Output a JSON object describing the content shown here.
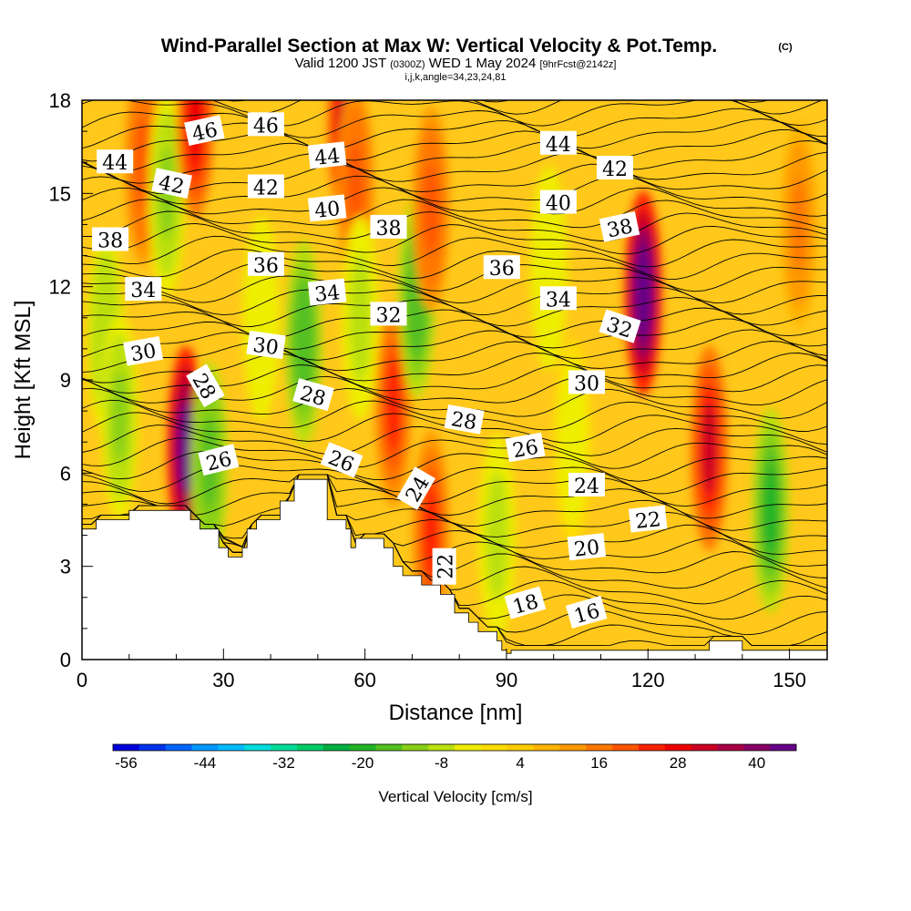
{
  "title": {
    "line1": "Wind-Parallel Section at Max W: Vertical Velocity & Pot.Temp.",
    "copyright": "(C)",
    "valid_prefix": "Valid 1200 JST",
    "valid_utc": "(0300Z)",
    "valid_date": "WED 1 May 2024",
    "forecast": "[9hrFcst@2142z]",
    "line3": "i,j,k,angle=34,23,24,81"
  },
  "chart_data": {
    "type": "heatmap",
    "xlabel": "Distance [nm]",
    "ylabel": "Height [Kft MSL]",
    "xlim": [
      0,
      158
    ],
    "ylim": [
      0,
      18
    ],
    "x_ticks": [
      0,
      30,
      60,
      90,
      120,
      150
    ],
    "y_ticks": [
      0,
      3,
      6,
      9,
      12,
      15,
      18
    ],
    "grid": false,
    "colorbar": {
      "label": "Vertical Velocity [cm/s]",
      "placement": "bottom",
      "tick_labels": [
        "-56",
        "-44",
        "-32",
        "-20",
        "-8",
        "4",
        "16",
        "28",
        "40"
      ],
      "colors": [
        "#0000dd",
        "#0033ee",
        "#0066ff",
        "#0099ff",
        "#00bbff",
        "#00dddd",
        "#00dd99",
        "#00cc66",
        "#00b040",
        "#22b428",
        "#55c020",
        "#88d018",
        "#bbe010",
        "#eeee00",
        "#ffdd00",
        "#ffcc00",
        "#ffb400",
        "#ff9900",
        "#ff7700",
        "#ff5500",
        "#ff2200",
        "#ee0000",
        "#cc0022",
        "#aa0044",
        "#880066",
        "#660088"
      ]
    },
    "vertical_velocity_features": [
      {
        "x": 5,
        "z": 10.5,
        "w": -12
      },
      {
        "x": 8,
        "z": 7.8,
        "w": -14
      },
      {
        "x": 13,
        "z": 16.0,
        "w": 18
      },
      {
        "x": 18,
        "z": 15.0,
        "w": -14
      },
      {
        "x": 22,
        "z": 6.8,
        "w": 42
      },
      {
        "x": 24,
        "z": 17.5,
        "w": 24
      },
      {
        "x": 27,
        "z": 6.3,
        "w": -18
      },
      {
        "x": 38,
        "z": 11.0,
        "w": -8
      },
      {
        "x": 47,
        "z": 10.2,
        "w": -20
      },
      {
        "x": 56,
        "z": 17.2,
        "w": 30
      },
      {
        "x": 58,
        "z": 15.2,
        "w": 18
      },
      {
        "x": 59,
        "z": 11.0,
        "w": -10
      },
      {
        "x": 66,
        "z": 8.2,
        "w": 22
      },
      {
        "x": 71,
        "z": 11.7,
        "w": -20
      },
      {
        "x": 74,
        "z": 14.5,
        "w": 18
      },
      {
        "x": 74,
        "z": 4.1,
        "w": 22
      },
      {
        "x": 88,
        "z": 4.0,
        "w": -10
      },
      {
        "x": 99,
        "z": 12.6,
        "w": -8
      },
      {
        "x": 104,
        "z": 7.0,
        "w": -6
      },
      {
        "x": 119,
        "z": 11.8,
        "w": 44
      },
      {
        "x": 133,
        "z": 6.8,
        "w": 28
      },
      {
        "x": 146,
        "z": 4.8,
        "w": -22
      },
      {
        "x": 152,
        "z": 14.0,
        "w": 12
      }
    ],
    "potential_temperature_labels": [
      {
        "value": "46",
        "x": 26,
        "z": 17.0,
        "angle": -12
      },
      {
        "value": "46",
        "x": 39,
        "z": 17.2,
        "angle": 0
      },
      {
        "value": "44",
        "x": 7,
        "z": 16.0,
        "angle": 0
      },
      {
        "value": "44",
        "x": 52,
        "z": 16.2,
        "angle": -6
      },
      {
        "value": "44",
        "x": 101,
        "z": 16.6,
        "angle": 0
      },
      {
        "value": "42",
        "x": 19,
        "z": 15.3,
        "angle": 12
      },
      {
        "value": "42",
        "x": 39,
        "z": 15.2,
        "angle": 0
      },
      {
        "value": "42",
        "x": 113,
        "z": 15.8,
        "angle": 0
      },
      {
        "value": "40",
        "x": 52,
        "z": 14.5,
        "angle": -6
      },
      {
        "value": "40",
        "x": 101,
        "z": 14.7,
        "angle": 0
      },
      {
        "value": "38",
        "x": 6,
        "z": 13.5,
        "angle": 0
      },
      {
        "value": "38",
        "x": 65,
        "z": 13.9,
        "angle": 0
      },
      {
        "value": "38",
        "x": 114,
        "z": 13.9,
        "angle": -12
      },
      {
        "value": "36",
        "x": 39,
        "z": 12.7,
        "angle": 0
      },
      {
        "value": "36",
        "x": 89,
        "z": 12.6,
        "angle": 0
      },
      {
        "value": "34",
        "x": 13,
        "z": 11.9,
        "angle": 0
      },
      {
        "value": "34",
        "x": 52,
        "z": 11.8,
        "angle": -6
      },
      {
        "value": "34",
        "x": 101,
        "z": 11.6,
        "angle": 0
      },
      {
        "value": "32",
        "x": 65,
        "z": 11.1,
        "angle": 0
      },
      {
        "value": "32",
        "x": 114,
        "z": 10.7,
        "angle": 18
      },
      {
        "value": "30",
        "x": 13,
        "z": 9.9,
        "angle": -10
      },
      {
        "value": "30",
        "x": 39,
        "z": 10.1,
        "angle": 8
      },
      {
        "value": "30",
        "x": 107,
        "z": 8.9,
        "angle": 0
      },
      {
        "value": "28",
        "x": 26,
        "z": 8.8,
        "angle": 60
      },
      {
        "value": "28",
        "x": 49,
        "z": 8.5,
        "angle": 16
      },
      {
        "value": "28",
        "x": 81,
        "z": 7.7,
        "angle": 10
      },
      {
        "value": "26",
        "x": 29,
        "z": 6.4,
        "angle": -14
      },
      {
        "value": "26",
        "x": 55,
        "z": 6.4,
        "angle": 22
      },
      {
        "value": "26",
        "x": 94,
        "z": 6.8,
        "angle": -10
      },
      {
        "value": "24",
        "x": 71,
        "z": 5.5,
        "angle": -60
      },
      {
        "value": "24",
        "x": 107,
        "z": 5.6,
        "angle": 0
      },
      {
        "value": "22",
        "x": 77,
        "z": 3.0,
        "angle": -90
      },
      {
        "value": "22",
        "x": 120,
        "z": 4.5,
        "angle": -6
      },
      {
        "value": "20",
        "x": 107,
        "z": 3.6,
        "angle": -6
      },
      {
        "value": "18",
        "x": 94,
        "z": 1.8,
        "angle": -16
      },
      {
        "value": "16",
        "x": 107,
        "z": 1.5,
        "angle": -16
      }
    ],
    "terrain_profile": [
      [
        0,
        4.2
      ],
      [
        3,
        4.2
      ],
      [
        3,
        4.5
      ],
      [
        10,
        4.5
      ],
      [
        10,
        4.8
      ],
      [
        23,
        4.8
      ],
      [
        23,
        4.5
      ],
      [
        25,
        4.5
      ],
      [
        25,
        4.2
      ],
      [
        29,
        4.2
      ],
      [
        29,
        3.6
      ],
      [
        31,
        3.6
      ],
      [
        31,
        3.3
      ],
      [
        34,
        3.3
      ],
      [
        34,
        3.6
      ],
      [
        35,
        3.6
      ],
      [
        35,
        4.2
      ],
      [
        37,
        4.2
      ],
      [
        37,
        4.5
      ],
      [
        42,
        4.5
      ],
      [
        42,
        5.1
      ],
      [
        45,
        5.1
      ],
      [
        45,
        5.8
      ],
      [
        52,
        5.8
      ],
      [
        52,
        4.5
      ],
      [
        56,
        4.5
      ],
      [
        56,
        4.2
      ],
      [
        57,
        4.2
      ],
      [
        57,
        3.6
      ],
      [
        58,
        3.6
      ],
      [
        58,
        3.9
      ],
      [
        64,
        3.9
      ],
      [
        64,
        3.6
      ],
      [
        66,
        3.6
      ],
      [
        66,
        3.0
      ],
      [
        68,
        3.0
      ],
      [
        68,
        2.7
      ],
      [
        72,
        2.7
      ],
      [
        72,
        2.4
      ],
      [
        76,
        2.4
      ],
      [
        76,
        2.1
      ],
      [
        79,
        2.1
      ],
      [
        79,
        1.5
      ],
      [
        82,
        1.5
      ],
      [
        82,
        1.2
      ],
      [
        84,
        1.2
      ],
      [
        84,
        0.9
      ],
      [
        88,
        0.9
      ],
      [
        88,
        0.6
      ],
      [
        89,
        0.6
      ],
      [
        89,
        0.3
      ],
      [
        90,
        0.3
      ],
      [
        90,
        0.2
      ],
      [
        91,
        0.2
      ],
      [
        91,
        0.3
      ],
      [
        133,
        0.3
      ],
      [
        133,
        0.6
      ],
      [
        140,
        0.6
      ],
      [
        140,
        0.3
      ],
      [
        158,
        0.3
      ]
    ]
  }
}
